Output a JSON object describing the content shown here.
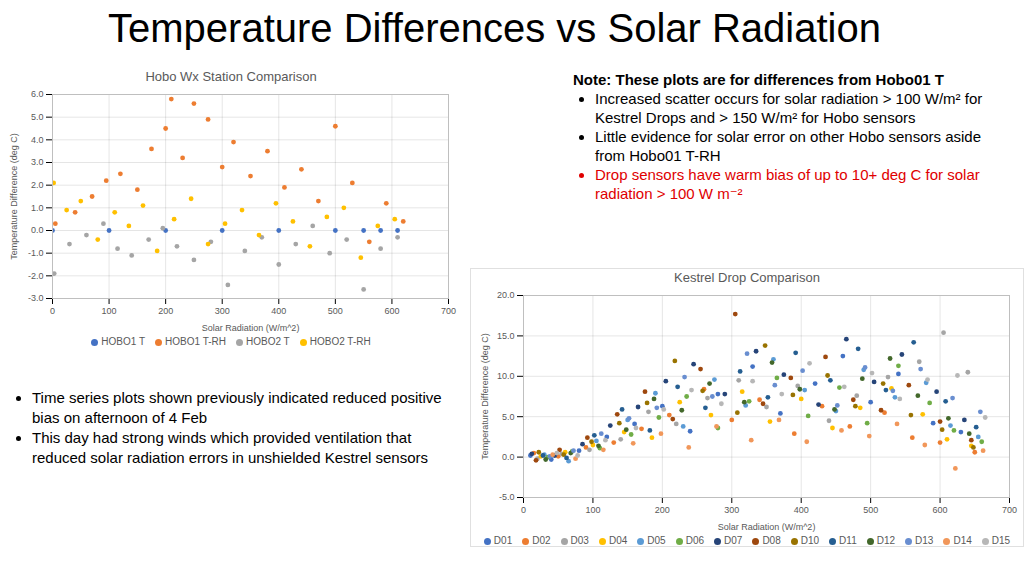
{
  "title": "Temperature Differences vs Solar Radiation",
  "note": {
    "heading": "Note: These plots are for differences from Hobo01 T",
    "bullets": [
      "Increased scatter occurs for solar radiation > 100 W/m² for Kestrel Drops and > 150 W/m² for Hobo sensors",
      "Little evidence for solar error on other Hobo sensors aside from Hobo01 T-RH",
      "Drop sensors have warm bias of up to 10+ deg C for solar radiation > 100 W m⁻²"
    ]
  },
  "bullets": [
    "Time series plots shown previously indicated reduced positive bias on afternoon of 4 Feb",
    "This day had strong winds which provided ventilation that reduced solar radiation errors in unshielded Kestrel sensors"
  ],
  "chart_data": [
    {
      "type": "scatter",
      "title": "Hobo Wx Station Comparison",
      "x_label": "Solar Radiation (W/m^2)",
      "y_label": "Temperature Difference (deg C)",
      "xlim": [
        0,
        700
      ],
      "xticks": [
        0,
        100,
        200,
        300,
        400,
        500,
        600,
        700
      ],
      "ylim": [
        -3,
        6
      ],
      "yticks": [
        {
          "value": -3,
          "label": "-3.0"
        },
        {
          "value": -2,
          "label": "-2.0"
        },
        {
          "value": -1,
          "label": "-1.0"
        },
        {
          "value": 0,
          "label": "0.0"
        },
        {
          "value": 1,
          "label": "1.0"
        },
        {
          "value": 2,
          "label": "2.0"
        },
        {
          "value": 3,
          "label": "3.0"
        },
        {
          "value": 4,
          "label": "4.0"
        },
        {
          "value": 5,
          "label": "5.0"
        },
        {
          "value": 6,
          "label": "6.0"
        }
      ],
      "grid": true,
      "legend": "bottom",
      "series": [
        {
          "name": "HOBO1 T",
          "color": "#4472c4",
          "x": [
            0,
            100,
            200,
            300,
            400,
            500,
            550,
            580,
            610
          ],
          "values": [
            0,
            0,
            0,
            0,
            0,
            0,
            0,
            0,
            0
          ]
        },
        {
          "name": "HOBO1 T-RH",
          "color": "#ed7d31",
          "x": [
            5,
            40,
            70,
            95,
            120,
            150,
            175,
            200,
            210,
            230,
            250,
            275,
            300,
            320,
            350,
            380,
            410,
            440,
            470,
            500,
            530,
            560,
            590,
            620
          ],
          "values": [
            0.3,
            0.8,
            1.5,
            2.2,
            2.5,
            1.8,
            3.6,
            4.5,
            5.8,
            3.2,
            5.6,
            4.9,
            2.8,
            3.9,
            2.4,
            3.5,
            1.9,
            2.7,
            1.3,
            4.6,
            2.1,
            -0.5,
            1.2,
            0.4
          ]
        },
        {
          "name": "HOBO2 T",
          "color": "#a5a5a5",
          "x": [
            3,
            30,
            60,
            90,
            115,
            140,
            170,
            195,
            220,
            250,
            280,
            310,
            340,
            370,
            400,
            430,
            460,
            490,
            520,
            550,
            580,
            610
          ],
          "values": [
            -1.9,
            -0.6,
            -0.2,
            0.3,
            -0.8,
            -1.1,
            -0.4,
            0.1,
            -0.7,
            -1.3,
            -0.5,
            -2.4,
            -0.9,
            -0.3,
            -1.5,
            -0.6,
            0.2,
            -1.0,
            -0.4,
            -2.6,
            -0.8,
            -0.3
          ]
        },
        {
          "name": "HOBO2 T-RH",
          "color": "#ffc000",
          "x": [
            2,
            25,
            50,
            80,
            110,
            135,
            160,
            185,
            215,
            245,
            275,
            305,
            335,
            365,
            395,
            425,
            455,
            485,
            515,
            545,
            575,
            605
          ],
          "values": [
            2.1,
            0.9,
            1.3,
            -0.4,
            0.8,
            0.2,
            1.1,
            -0.9,
            0.5,
            1.4,
            -0.6,
            0.3,
            0.9,
            -0.2,
            1.2,
            0.4,
            -0.7,
            0.6,
            1.0,
            -1.2,
            0.2,
            0.5
          ]
        }
      ]
    },
    {
      "type": "scatter",
      "title": "Kestrel Drop Comparison",
      "x_label": "Solar Radiation (W/m^2)",
      "y_label": "Temperature Difference (deg C)",
      "xlim": [
        0,
        700
      ],
      "xticks": [
        0,
        100,
        200,
        300,
        400,
        500,
        600,
        700
      ],
      "ylim": [
        -5,
        20
      ],
      "yticks": [
        {
          "value": -5,
          "label": "-5.0"
        },
        {
          "value": 0,
          "label": "0.0"
        },
        {
          "value": 5,
          "label": "5.0"
        },
        {
          "value": 10,
          "label": "10.0"
        },
        {
          "value": 15,
          "label": "15.0"
        },
        {
          "value": 20,
          "label": "20.0"
        }
      ],
      "grid": true,
      "legend": "bottom",
      "series": [
        {
          "name": "D01",
          "color": "#4472c4",
          "x": [
            10,
            40,
            80,
            120,
            160,
            200,
            240,
            280,
            330,
            370,
            420,
            460,
            500,
            540,
            590,
            630
          ],
          "values": [
            0.2,
            -0.3,
            0.8,
            2.5,
            4.1,
            6.3,
            3.2,
            7.8,
            11.2,
            5.4,
            9.1,
            12.5,
            6.8,
            10.3,
            4.2,
            3.1
          ]
        },
        {
          "name": "D02",
          "color": "#ed7d31",
          "x": [
            15,
            50,
            90,
            130,
            170,
            210,
            260,
            300,
            340,
            390,
            430,
            470,
            520,
            560,
            600,
            650
          ],
          "values": [
            0.5,
            0.1,
            1.2,
            1.8,
            3.5,
            5.2,
            8.4,
            4.6,
            7.1,
            2.9,
            6.3,
            3.8,
            5.5,
            2.4,
            1.8,
            0.6
          ]
        },
        {
          "name": "D03",
          "color": "#a5a5a5",
          "x": [
            20,
            55,
            95,
            140,
            180,
            220,
            265,
            310,
            350,
            395,
            440,
            480,
            525,
            570,
            605,
            640
          ],
          "values": [
            -0.2,
            0.4,
            0.9,
            2.2,
            5.6,
            4.1,
            7.3,
            9.5,
            6.2,
            8.8,
            4.5,
            7.6,
            9.9,
            11.8,
            15.4,
            10.5
          ]
        },
        {
          "name": "D04",
          "color": "#ffc000",
          "x": [
            25,
            60,
            100,
            145,
            185,
            225,
            270,
            315,
            355,
            400,
            445,
            485,
            530,
            575,
            610,
            645
          ],
          "values": [
            0.1,
            0.6,
            1.5,
            3.1,
            2.4,
            6.8,
            5.2,
            8.1,
            4.4,
            7.2,
            3.6,
            6.1,
            8.5,
            5.3,
            2.2,
            1.4
          ]
        },
        {
          "name": "D05",
          "color": "#5b9bd5",
          "x": [
            30,
            65,
            105,
            150,
            190,
            230,
            275,
            320,
            360,
            405,
            450,
            490,
            535,
            580,
            615,
            655
          ],
          "values": [
            0.3,
            -0.5,
            2.0,
            4.6,
            7.9,
            3.8,
            9.6,
            6.4,
            12.1,
            8.3,
            5.7,
            10.8,
            7.4,
            9.2,
            3.9,
            2.5
          ]
        },
        {
          "name": "D06",
          "color": "#70ad47",
          "x": [
            35,
            70,
            110,
            155,
            195,
            235,
            280,
            325,
            365,
            410,
            455,
            495,
            540,
            585,
            620,
            660
          ],
          "values": [
            0.0,
            0.7,
            1.1,
            2.8,
            4.9,
            7.5,
            3.6,
            6.9,
            9.8,
            5.1,
            8.6,
            4.2,
            11.3,
            6.7,
            3.3,
            1.9
          ]
        },
        {
          "name": "D07",
          "color": "#264478",
          "x": [
            12,
            45,
            85,
            125,
            165,
            205,
            245,
            290,
            335,
            375,
            425,
            465,
            505,
            545,
            595,
            635
          ],
          "values": [
            0.4,
            0.2,
            1.6,
            3.9,
            6.2,
            9.4,
            11.5,
            7.8,
            13.1,
            10.2,
            6.5,
            14.6,
            9.3,
            12.7,
            8.1,
            4.6
          ]
        },
        {
          "name": "D08",
          "color": "#9e480e",
          "x": [
            18,
            52,
            92,
            135,
            175,
            215,
            255,
            305,
            345,
            385,
            435,
            475,
            515,
            555,
            600,
            645
          ],
          "values": [
            -0.4,
            0.9,
            2.4,
            5.3,
            8.1,
            4.7,
            10.9,
            17.7,
            6.6,
            9.8,
            12.4,
            7.1,
            5.8,
            8.9,
            4.4,
            2.1
          ]
        },
        {
          "name": "D10",
          "color": "#997300",
          "x": [
            22,
            58,
            98,
            138,
            178,
            218,
            258,
            308,
            348,
            388,
            438,
            478,
            518,
            558,
            603,
            648
          ],
          "values": [
            0.6,
            0.3,
            1.9,
            4.2,
            6.7,
            11.9,
            8.2,
            5.5,
            13.8,
            7.7,
            10.1,
            6.3,
            9.1,
            5.2,
            3.4,
            1.2
          ]
        },
        {
          "name": "D11",
          "color": "#255e91",
          "x": [
            28,
            62,
            102,
            142,
            182,
            222,
            262,
            312,
            352,
            392,
            442,
            482,
            522,
            562,
            608,
            652
          ],
          "values": [
            0.2,
            -0.1,
            2.7,
            5.9,
            3.3,
            8.7,
            6.1,
            10.6,
            7.4,
            12.9,
            9.5,
            13.4,
            8.3,
            14.2,
            6.9,
            3.7
          ]
        },
        {
          "name": "D12",
          "color": "#43682b",
          "x": [
            32,
            68,
            108,
            148,
            188,
            228,
            268,
            318,
            358,
            398,
            448,
            488,
            528,
            568,
            612,
            642
          ],
          "values": [
            -0.3,
            0.5,
            1.4,
            3.4,
            7.2,
            5.8,
            9.1,
            6.8,
            11.7,
            8.4,
            5.9,
            9.7,
            12.2,
            7.6,
            4.8,
            2.9
          ]
        },
        {
          "name": "D13",
          "color": "#698ed0",
          "x": [
            38,
            72,
            112,
            152,
            192,
            232,
            272,
            322,
            362,
            402,
            452,
            492,
            532,
            572,
            618,
            658
          ],
          "values": [
            0.1,
            0.8,
            2.9,
            4.8,
            6.1,
            9.9,
            7.5,
            12.8,
            8.9,
            10.7,
            6.4,
            11.1,
            8.2,
            10.9,
            7.3,
            5.6
          ]
        },
        {
          "name": "D14",
          "color": "#f1975a",
          "x": [
            42,
            75,
            115,
            158,
            198,
            238,
            278,
            328,
            368,
            408,
            458,
            498,
            538,
            578,
            622,
            662
          ],
          "values": [
            0.3,
            -0.2,
            0.9,
            1.7,
            2.9,
            1.2,
            3.8,
            2.1,
            4.6,
            1.9,
            3.3,
            2.6,
            4.1,
            1.5,
            -1.4,
            0.8
          ]
        },
        {
          "name": "D15",
          "color": "#b7b7b7",
          "x": [
            48,
            78,
            118,
            162,
            202,
            242,
            285,
            330,
            372,
            412,
            462,
            502,
            542,
            582,
            625,
            665
          ],
          "values": [
            0.5,
            0.2,
            2.1,
            3.6,
            5.9,
            8.3,
            6.6,
            9.4,
            7.8,
            11.6,
            8.7,
            10.4,
            7.2,
            9.6,
            10.1,
            4.9
          ]
        }
      ]
    }
  ]
}
